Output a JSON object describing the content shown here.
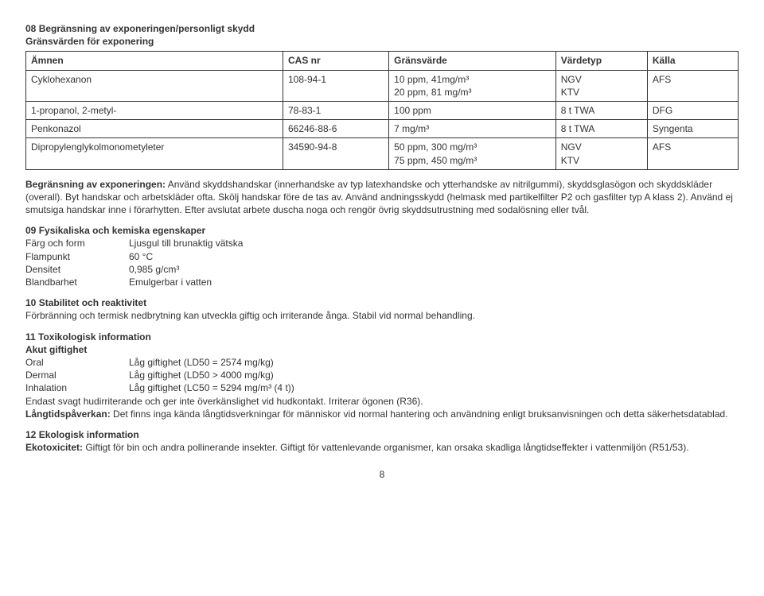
{
  "sec08": {
    "number": "08",
    "title": "Begränsning av exponeringen/personligt skydd",
    "subtitle": "Gränsvärden för exponering",
    "table_headers": [
      "Ämnen",
      "CAS nr",
      "Gränsvärde",
      "Värdetyp",
      "Källa"
    ],
    "rows": [
      {
        "name": "Cyklohexanon",
        "cas": "108-94-1",
        "limit": "10 ppm, 41mg/m³\n20 ppm, 81 mg/m³",
        "type": "NGV\nKTV",
        "source": "AFS"
      },
      {
        "name": "1-propanol, 2-metyl-",
        "cas": "78-83-1",
        "limit": "100 ppm",
        "type": "8 t TWA",
        "source": "DFG"
      },
      {
        "name": "Penkonazol",
        "cas": "66246-88-6",
        "limit": "7 mg/m³",
        "type": "8 t TWA",
        "source": "Syngenta"
      },
      {
        "name": "Dipropylenglykolmonometyleter",
        "cas": "34590-94-8",
        "limit": "50 ppm, 300 mg/m³\n75 ppm, 450 mg/m³",
        "type": "NGV\nKTV",
        "source": "AFS"
      }
    ],
    "begransning_label": "Begränsning av exponeringen:",
    "begransning_text": " Använd skyddshandskar (innerhandske av typ latexhandske och ytterhandske av nitrilgummi), skyddsglasögon och skyddskläder (overall). Byt handskar och arbetskläder ofta. Skölj handskar före de tas av. Använd andningsskydd (helmask med partikelfilter P2 och gasfilter typ A klass 2). Använd ej smutsiga handskar inne i förarhytten. Efter avslutat arbete duscha noga och rengör övrig skyddsutrustning med sodalösning eller tvål."
  },
  "sec09": {
    "number": "09",
    "title": "Fysikaliska och kemiska egenskaper",
    "rows": [
      {
        "k": "Färg och form",
        "v": "Ljusgul till brunaktig vätska"
      },
      {
        "k": "Flampunkt",
        "v": "60 °C"
      },
      {
        "k": "Densitet",
        "v": "0,985 g/cm³"
      },
      {
        "k": "Blandbarhet",
        "v": "Emulgerbar i vatten"
      }
    ]
  },
  "sec10": {
    "number": "10",
    "title": "Stabilitet och reaktivitet",
    "text": "Förbränning och termisk nedbrytning kan utveckla giftig och irriterande ånga. Stabil vid normal behandling."
  },
  "sec11": {
    "number": "11",
    "title": "Toxikologisk information",
    "sub": "Akut giftighet",
    "rows": [
      {
        "k": "Oral",
        "v": "Låg giftighet (LD50 = 2574 mg/kg)"
      },
      {
        "k": "Dermal",
        "v": "Låg giftighet (LD50 > 4000 mg/kg)"
      },
      {
        "k": "Inhalation",
        "v": "Låg giftighet (LC50 = 5294 mg/m³  (4 t))"
      }
    ],
    "tail": "Endast svagt hudirriterande och ger inte överkänslighet vid hudkontakt. Irriterar ögonen (R36).",
    "lang_label": "Långtidspåverkan:",
    "lang_text": " Det finns inga kända långtidsverkningar för människor vid normal hantering och användning enligt bruksanvisningen och detta säkerhetsdatablad."
  },
  "sec12": {
    "number": "12",
    "title": "Ekologisk information",
    "eko_label": "Ekotoxicitet:",
    "eko_text": " Giftigt för bin och andra pollinerande insekter. Giftigt för vattenlevande organismer, kan orsaka skadliga långtidseffekter i vattenmiljön (R51/53)."
  },
  "page_number": "8"
}
